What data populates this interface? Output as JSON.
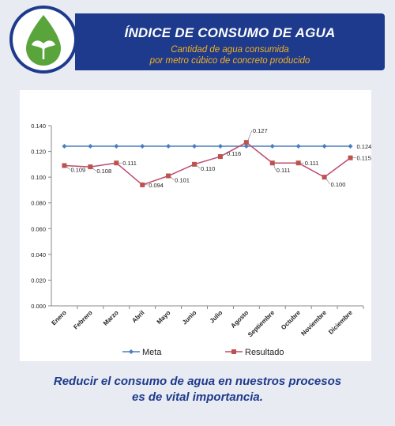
{
  "header": {
    "title": "ÍNDICE DE CONSUMO DE AGUA",
    "subtitle_line1": "Cantidad de agua consumida",
    "subtitle_line2": "por metro cúbico de concreto producido"
  },
  "colors": {
    "banner": "#1d3a8c",
    "subtitle": "#f4b11f",
    "meta": "#4a7ebb",
    "resultado": "#be4b6e",
    "resultado_marker": "#c0504d",
    "drop": "#5aa43c"
  },
  "icons": {
    "logo": "water-drop-leaf-icon"
  },
  "chart_data": {
    "type": "line",
    "categories": [
      "Enero",
      "Febrero",
      "Marzo",
      "Abril",
      "Mayo",
      "Junio",
      "Julio",
      "Agosto",
      "Septiembre",
      "Octubre",
      "Noviembre",
      "Diciembre"
    ],
    "series": [
      {
        "name": "Meta",
        "values": [
          0.124,
          0.124,
          0.124,
          0.124,
          0.124,
          0.124,
          0.124,
          0.124,
          0.124,
          0.124,
          0.124,
          0.124
        ],
        "labels": [
          "",
          "",
          "",
          "",
          "",
          "",
          "",
          "",
          "",
          "",
          "",
          "0.124"
        ]
      },
      {
        "name": "Resultado",
        "values": [
          0.109,
          0.108,
          0.111,
          0.094,
          0.101,
          0.11,
          0.116,
          0.127,
          0.111,
          0.111,
          0.1,
          0.115
        ],
        "labels": [
          "0.109",
          "0.108",
          "0.111",
          "0.094",
          "0.101",
          "0.110",
          "0.116",
          "0.127",
          "0.111",
          "0.111",
          "0.100",
          "0.115"
        ]
      }
    ],
    "ylim": [
      0,
      0.14
    ],
    "yticks": [
      "0.000",
      "0.020",
      "0.040",
      "0.060",
      "0.080",
      "0.100",
      "0.120",
      "0.140"
    ],
    "grid": false,
    "legend_position": "bottom"
  },
  "footer": {
    "line1": "Reducir el consumo de agua en nuestros procesos",
    "line2": "es de vital importancia."
  }
}
